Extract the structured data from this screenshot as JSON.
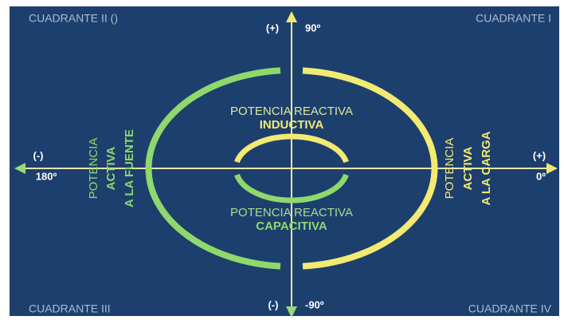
{
  "quadrants": [
    "CUADRANTE II ()",
    "CUADRANTE I",
    "CUADRANTE III",
    "CUADRANTE IV"
  ],
  "axes": {
    "top": {
      "sign": "(+)",
      "angle": "90º"
    },
    "bottom": {
      "sign": "(-)",
      "angle": "-90º"
    },
    "left": {
      "sign": "(-)",
      "angle": "180º"
    },
    "right": {
      "sign": "(+)",
      "angle": "0º"
    }
  },
  "reactive": {
    "upper": {
      "title": "POTENCIA REACTIVA",
      "kind": "INDUCTIVA"
    },
    "lower": {
      "title": "POTENCIA REACTIVA",
      "kind": "CAPACITIVA"
    }
  },
  "active": {
    "left": {
      "title": "POTENCIA",
      "kind": "ACTIVA",
      "target": "A LA FUENTE"
    },
    "right": {
      "title": "POTENCIA",
      "kind": "ACTIVA",
      "target": "A LA CARGA"
    }
  }
}
